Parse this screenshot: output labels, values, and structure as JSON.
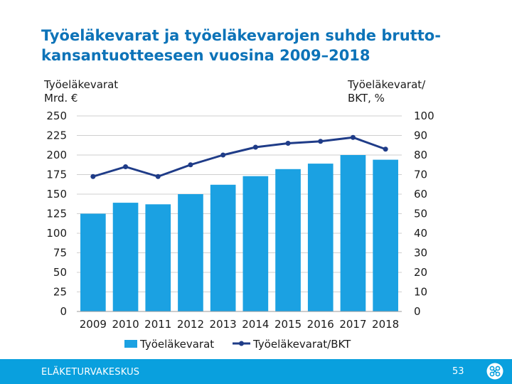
{
  "slide": {
    "title_line1": "Työeläkevarat ja työeläkevarojen suhde brutto-",
    "title_line2": "kansantuotteeseen vuosina 2009–2018",
    "footer_org": "ELÄKETURVAKESKUS",
    "page_number": "53",
    "logo_icon": "etk-logo-icon"
  },
  "colors": {
    "title": "#0d73b8",
    "bar": "#1ba1e2",
    "line": "#1f3c88",
    "footer": "#09a0de",
    "grid": "#cfcfcf"
  },
  "chart_data": {
    "type": "bar",
    "title": "Työeläkevarat ja työeläkevarojen suhde bruttokansantuotteeseen vuosina 2009–2018",
    "left_axis_title": [
      "Työeläkevarat",
      "Mrd. €"
    ],
    "right_axis_title": [
      "Työeläkevarat/",
      "BKT, %"
    ],
    "categories": [
      "2009",
      "2010",
      "2011",
      "2012",
      "2013",
      "2014",
      "2015",
      "2016",
      "2017",
      "2018"
    ],
    "ylim": [
      0,
      250
    ],
    "y_ticks": [
      "0",
      "25",
      "50",
      "75",
      "100",
      "125",
      "150",
      "175",
      "200",
      "225",
      "250"
    ],
    "y2lim": [
      0,
      100
    ],
    "y2_ticks": [
      "0",
      "10",
      "20",
      "30",
      "40",
      "50",
      "60",
      "70",
      "80",
      "90",
      "100"
    ],
    "series": [
      {
        "name": "Työeläkevarat",
        "kind": "bar",
        "axis": "left",
        "values": [
          125,
          139,
          137,
          150,
          162,
          173,
          182,
          189,
          200,
          194
        ]
      },
      {
        "name": "Työeläkevarat/BKT",
        "kind": "line",
        "axis": "right",
        "values": [
          69,
          74,
          69,
          75,
          80,
          84,
          86,
          87,
          89,
          83
        ]
      }
    ],
    "legend": [
      "Työeläkevarat",
      "Työeläkevarat/BKT"
    ],
    "legend_position": "bottom",
    "grid": true
  }
}
